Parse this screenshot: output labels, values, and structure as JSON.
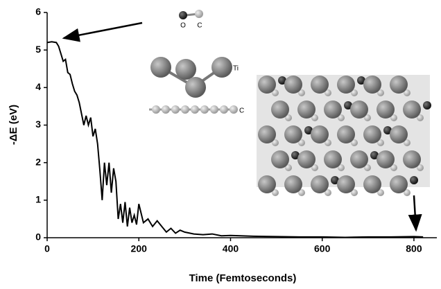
{
  "chart_data": {
    "type": "line",
    "x_label": "Time (Femtoseconds)",
    "y_label": "-ΔE (eV)",
    "xlim": [
      0,
      850
    ],
    "ylim": [
      0,
      6
    ],
    "xticks": [
      0,
      200,
      400,
      600,
      800
    ],
    "yticks": [
      0,
      1,
      2,
      3,
      4,
      5,
      6
    ],
    "annotations": [
      "O",
      "C",
      "Ti",
      "C"
    ],
    "series": [
      {
        "color": "#000000",
        "x": [
          0,
          10,
          20,
          25,
          30,
          35,
          40,
          45,
          50,
          55,
          60,
          65,
          70,
          75,
          80,
          85,
          90,
          95,
          100,
          105,
          110,
          115,
          120,
          125,
          130,
          135,
          140,
          145,
          150,
          155,
          160,
          165,
          170,
          175,
          180,
          185,
          190,
          195,
          200,
          210,
          220,
          230,
          240,
          250,
          260,
          270,
          280,
          290,
          300,
          320,
          340,
          360,
          380,
          400,
          450,
          500,
          550,
          600,
          650,
          700,
          750,
          800,
          820
        ],
        "values": [
          5.2,
          5.22,
          5.2,
          5.1,
          4.9,
          4.7,
          4.75,
          4.4,
          4.35,
          4.1,
          3.9,
          3.8,
          3.6,
          3.3,
          3.0,
          3.25,
          3.0,
          3.2,
          2.7,
          2.9,
          2.5,
          1.8,
          1.0,
          2.0,
          1.4,
          2.0,
          1.2,
          1.85,
          1.5,
          0.5,
          0.9,
          0.4,
          0.95,
          0.3,
          0.8,
          0.4,
          0.6,
          0.35,
          0.9,
          0.4,
          0.5,
          0.3,
          0.45,
          0.3,
          0.15,
          0.25,
          0.12,
          0.2,
          0.15,
          0.1,
          0.08,
          0.1,
          0.05,
          0.06,
          0.04,
          0.03,
          0.02,
          0.02,
          0.01,
          0.02,
          0.02,
          0.03,
          0.02
        ]
      }
    ]
  }
}
